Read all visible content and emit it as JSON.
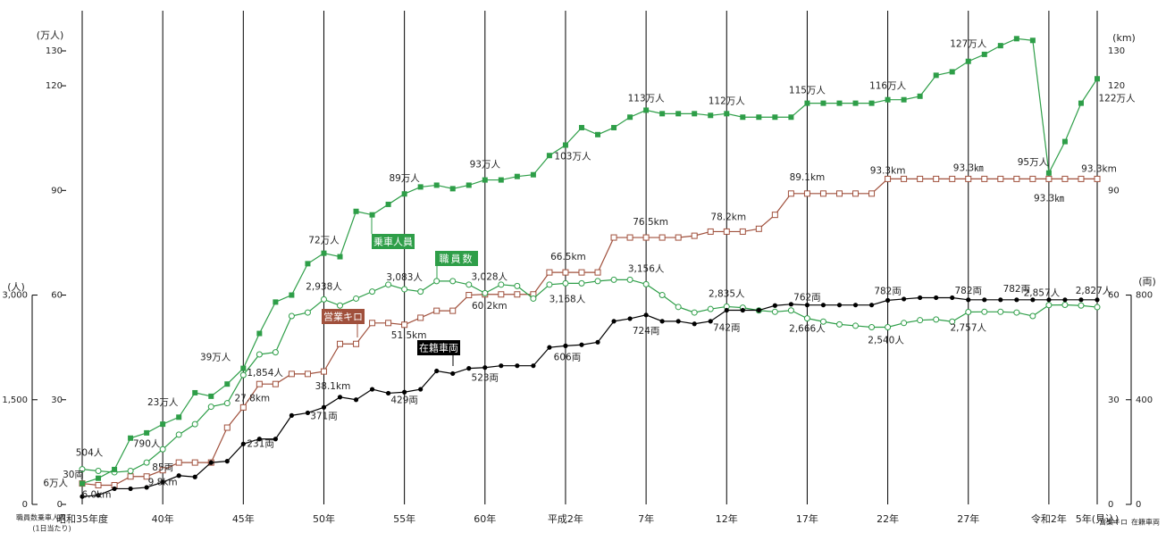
{
  "chart_data": {
    "type": "line",
    "categories": [
      "昭和35年度",
      null,
      null,
      null,
      null,
      "40年",
      null,
      null,
      null,
      null,
      "45年",
      null,
      null,
      null,
      null,
      "50年",
      null,
      null,
      null,
      null,
      "55年",
      null,
      null,
      null,
      null,
      "60年",
      null,
      null,
      null,
      null,
      "平成2年",
      null,
      null,
      null,
      null,
      "7年",
      null,
      null,
      null,
      null,
      "12年",
      null,
      null,
      null,
      null,
      "17年",
      null,
      null,
      null,
      null,
      "22年",
      null,
      null,
      null,
      null,
      "27年",
      null,
      null,
      null,
      null,
      "令和2年",
      null,
      null,
      "5年(見込)"
    ],
    "ylim": [
      0,
      130
    ],
    "yticks": [
      0,
      30,
      60,
      90,
      120,
      130
    ],
    "y_label": "(万人)",
    "y_caption": "乗車人員",
    "y_caption_note": "(1日当たり)",
    "y2lim": [
      0,
      130
    ],
    "y2ticks": [
      0,
      30,
      60,
      90,
      120,
      130
    ],
    "y2_label": "(km)",
    "y2_caption": "営業キロ",
    "y3lim": [
      0,
      3000
    ],
    "y3ticks": [
      0,
      {
        "value": 1500,
        "label": "1,500"
      },
      {
        "value": 3000,
        "label": "3,000"
      }
    ],
    "y3_label": "(人)",
    "y3_caption": "職員数",
    "y4lim": [
      0,
      800
    ],
    "y4ticks": [
      0,
      400,
      800
    ],
    "y4_label": "(両)",
    "y4_caption": "在籍車両",
    "series": [
      {
        "name": "乗車人員",
        "color": "#2e9e48",
        "marker": "filled-square",
        "axis": "y",
        "values": [
          6,
          7.5,
          10,
          19,
          20.5,
          23,
          25,
          32,
          31,
          34.5,
          39,
          49,
          58,
          60,
          69,
          72,
          71,
          84,
          83,
          86,
          89,
          91,
          91.5,
          90.5,
          91.5,
          93,
          93,
          94,
          94.5,
          100,
          103,
          108,
          106,
          108,
          111,
          113,
          112,
          112,
          112,
          111.5,
          112,
          111,
          111,
          111,
          111,
          115,
          115,
          115,
          115,
          115,
          116,
          116,
          117,
          123,
          124,
          127,
          129,
          131.5,
          133.5,
          133,
          95,
          104,
          115,
          122
        ],
        "value_labels": [
          "6万人",
          null,
          null,
          null,
          null,
          "23万人",
          null,
          null,
          null,
          null,
          "39万人",
          null,
          null,
          null,
          null,
          "72万人",
          null,
          null,
          null,
          null,
          "89万人",
          null,
          null,
          null,
          null,
          "93万人",
          null,
          null,
          null,
          null,
          "103万人",
          null,
          null,
          null,
          null,
          "113万人",
          null,
          null,
          null,
          null,
          "112万人",
          null,
          null,
          null,
          null,
          "115万人",
          null,
          null,
          null,
          null,
          "116万人",
          null,
          null,
          null,
          null,
          "127万人",
          null,
          null,
          null,
          null,
          "95万人",
          null,
          null,
          "122万人"
        ]
      },
      {
        "name": "職員数",
        "color": "#2e9e48",
        "marker": "hollow-circle",
        "axis": "y3",
        "values": [
          504,
          480,
          460,
          480,
          600,
          790,
          1000,
          1150,
          1400,
          1450,
          1854,
          2150,
          2180,
          2700,
          2750,
          2938,
          2850,
          2950,
          3050,
          3150,
          3083,
          3050,
          3200,
          3200,
          3150,
          3028,
          3150,
          3130,
          2950,
          3150,
          3168,
          3168,
          3200,
          3220,
          3220,
          3156,
          3000,
          2830,
          2750,
          2800,
          2835,
          2820,
          2780,
          2760,
          2780,
          2666,
          2620,
          2580,
          2560,
          2540,
          2540,
          2600,
          2640,
          2650,
          2620,
          2757,
          2760,
          2760,
          2750,
          2700,
          2857,
          2860,
          2850,
          2827
        ],
        "value_labels": [
          "504人",
          null,
          null,
          null,
          null,
          "790人",
          null,
          null,
          null,
          null,
          "1,854人",
          null,
          null,
          null,
          null,
          "2,938人",
          null,
          null,
          null,
          null,
          "3,083人",
          null,
          null,
          null,
          null,
          "3,028人",
          null,
          null,
          null,
          null,
          "3,168人",
          null,
          null,
          null,
          null,
          "3,156人",
          null,
          null,
          null,
          null,
          "2,835人",
          null,
          null,
          null,
          null,
          "2,666人",
          null,
          null,
          null,
          null,
          "2,540人",
          null,
          null,
          null,
          null,
          "2,757人",
          null,
          null,
          null,
          null,
          "2,857人",
          null,
          null,
          "2,827人"
        ]
      },
      {
        "name": "営業キロ",
        "color": "#a0503c",
        "marker": "hollow-square",
        "axis": "y2",
        "values": [
          6,
          5.5,
          5.5,
          8,
          8,
          9.8,
          12,
          12,
          12,
          22,
          27.8,
          34.5,
          34.5,
          37.4,
          37.4,
          38.1,
          46,
          46,
          52,
          52,
          51.5,
          53.5,
          55.5,
          55.5,
          60,
          60.2,
          60.2,
          60.2,
          60.2,
          66.5,
          66.5,
          66.5,
          66.5,
          76.5,
          76.5,
          76.5,
          76.5,
          76.5,
          77,
          78.2,
          78.2,
          78.2,
          79,
          83,
          89.1,
          89.1,
          89.1,
          89.1,
          89.1,
          89.1,
          93.3,
          93.3,
          93.3,
          93.3,
          93.3,
          93.3,
          93.3,
          93.3,
          93.3,
          93.3,
          93.3,
          93.3,
          93.3,
          93.3
        ],
        "value_labels": [
          "6.0km",
          null,
          null,
          null,
          null,
          "9.8km",
          null,
          null,
          null,
          null,
          "27.8km",
          null,
          null,
          null,
          null,
          "38.1km",
          null,
          null,
          null,
          null,
          "51.5km",
          null,
          null,
          null,
          null,
          "60.2km",
          null,
          null,
          null,
          null,
          "66.5km",
          null,
          null,
          null,
          null,
          "76.5km",
          null,
          null,
          null,
          null,
          "78.2km",
          null,
          null,
          null,
          null,
          "89.1km",
          null,
          null,
          null,
          null,
          "93.3km",
          null,
          null,
          null,
          null,
          "93.3㎞",
          null,
          null,
          null,
          null,
          "93.3㎞",
          null,
          null,
          "93.3km"
        ]
      },
      {
        "name": "在籍車両",
        "color": "#000000",
        "marker": "filled-circle",
        "axis": "y4",
        "values": [
          30,
          35,
          60,
          60,
          65,
          85,
          110,
          105,
          160,
          165,
          231,
          250,
          250,
          340,
          350,
          371,
          410,
          400,
          440,
          425,
          429,
          440,
          510,
          500,
          520,
          523,
          530,
          530,
          530,
          600,
          606,
          610,
          620,
          700,
          710,
          724,
          700,
          700,
          690,
          700,
          742,
          742,
          742,
          760,
          765,
          762,
          762,
          762,
          762,
          762,
          780,
          785,
          790,
          790,
          790,
          782,
          782,
          782,
          782,
          782,
          782,
          782,
          782,
          782
        ],
        "value_labels": [
          "30両",
          null,
          null,
          null,
          null,
          "85両",
          null,
          null,
          null,
          null,
          "231両",
          null,
          null,
          null,
          null,
          "371両",
          null,
          null,
          null,
          null,
          "429両",
          null,
          null,
          null,
          null,
          "523両",
          null,
          null,
          null,
          null,
          "606両",
          null,
          null,
          null,
          null,
          "724両",
          null,
          null,
          null,
          null,
          "742両",
          null,
          null,
          null,
          null,
          "762両",
          null,
          null,
          null,
          null,
          "782両",
          null,
          null,
          null,
          null,
          "782両",
          null,
          null,
          "782両"
        ]
      }
    ]
  }
}
